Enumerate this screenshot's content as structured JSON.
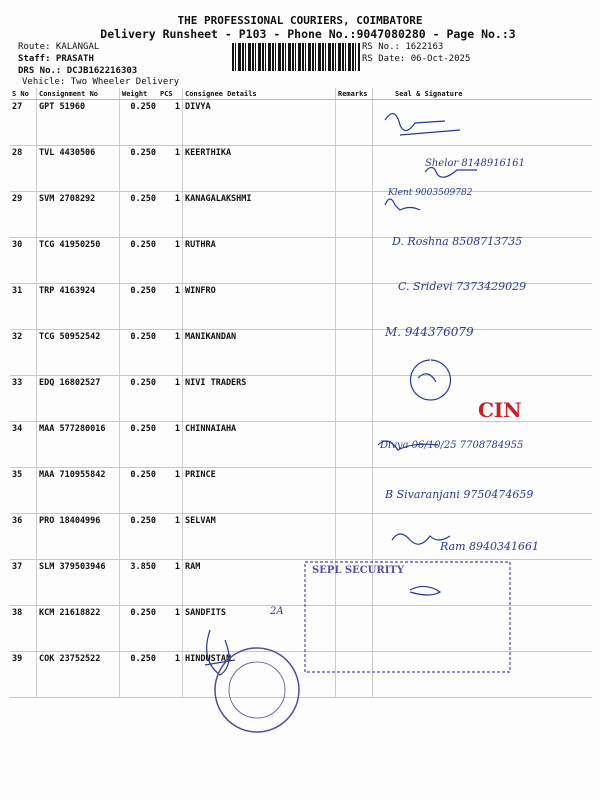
{
  "header": {
    "company": "THE PROFESSIONAL COURIERS, COIMBATORE",
    "subtitle": "Delivery Runsheet - P103 - Phone No.:9047080280 - Page No.:3",
    "route": "Route: KALANGAL",
    "staff": "Staff: PRASATH",
    "drs": "DRS No.: DCJB162216303",
    "vehicle": "Vehicle: Two Wheeler Delivery",
    "rs_no": "RS No.: 1622163",
    "rs_date": "RS Date: 06-Oct-2025"
  },
  "table": {
    "columns": [
      "S No",
      "Consignment No",
      "Weight",
      "PCS",
      "Consignee Details",
      "Remarks",
      "Seal & Signature"
    ],
    "rows": [
      {
        "sno": "27",
        "consignment": "GPT 51960",
        "weight": "0.250",
        "pcs": "1",
        "consignee": "DIVYA"
      },
      {
        "sno": "28",
        "consignment": "TVL 4430506",
        "weight": "0.250",
        "pcs": "1",
        "consignee": "KEERTHIKA"
      },
      {
        "sno": "29",
        "consignment": "SVM 2708292",
        "weight": "0.250",
        "pcs": "1",
        "consignee": "KANAGALAKSHMI"
      },
      {
        "sno": "30",
        "consignment": "TCG 41950250",
        "weight": "0.250",
        "pcs": "1",
        "consignee": "RUTHRA"
      },
      {
        "sno": "31",
        "consignment": "TRP 4163924",
        "weight": "0.250",
        "pcs": "1",
        "consignee": "WINFRO"
      },
      {
        "sno": "32",
        "consignment": "TCG 50952542",
        "weight": "0.250",
        "pcs": "1",
        "consignee": "MANIKANDAN"
      },
      {
        "sno": "33",
        "consignment": "EDQ 16802527",
        "weight": "0.250",
        "pcs": "1",
        "consignee": "NIVI TRADERS"
      },
      {
        "sno": "34",
        "consignment": "MAA 577280016",
        "weight": "0.250",
        "pcs": "1",
        "consignee": "CHINNAIAHA"
      },
      {
        "sno": "35",
        "consignment": "MAA 710955842",
        "weight": "0.250",
        "pcs": "1",
        "consignee": "PRINCE"
      },
      {
        "sno": "36",
        "consignment": "PRO 18404996",
        "weight": "0.250",
        "pcs": "1",
        "consignee": "SELVAM"
      },
      {
        "sno": "37",
        "consignment": "SLM 379503946",
        "weight": "3.850",
        "pcs": "1",
        "consignee": "RAM"
      },
      {
        "sno": "38",
        "consignment": "KCM 21618822",
        "weight": "0.250",
        "pcs": "1",
        "consignee": "SANDFITS"
      },
      {
        "sno": "39",
        "consignment": "COK 23752522",
        "weight": "0.250",
        "pcs": "1",
        "consignee": "HINDUSTAN"
      }
    ]
  },
  "handwriting": {
    "r27": "Divya 06/10/25",
    "r28": "Shelor 8148916161",
    "r29": "Klent 9003509782",
    "r30": "D. Roshna 8508713735",
    "r31": "C. Sridevi 7373429029",
    "r32": "M. 944376079",
    "r34": "CIN",
    "r35": "Divya 06/10/25 7708784955",
    "r36": "B Sivaranjani 9750474659",
    "r37": "Ram 8940341661",
    "r38": "SEPL SECURITY",
    "r39": "2A"
  },
  "colors": {
    "ink": "#2a3a8c",
    "red_stamp": "#c8202a",
    "stamp_purple": "#5a4a9a"
  }
}
